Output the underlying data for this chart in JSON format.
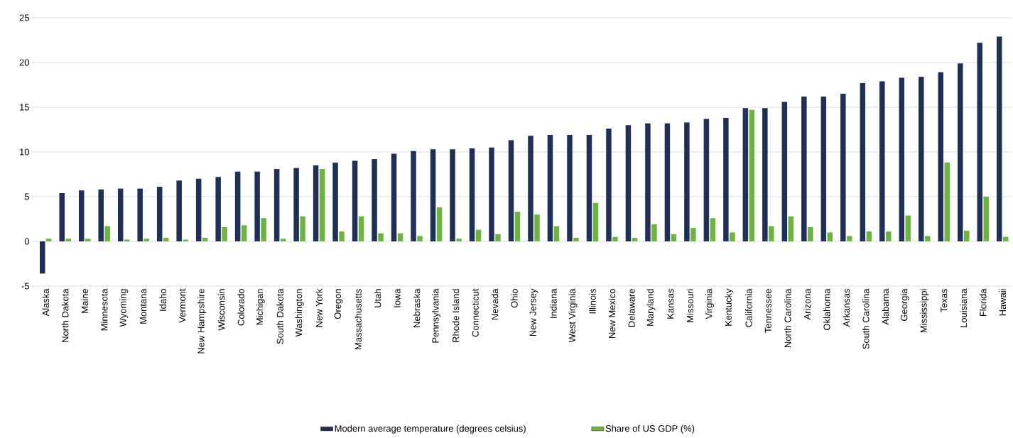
{
  "chart_data": {
    "type": "bar",
    "categories": [
      "Alaska",
      "North Dakota",
      "Maine",
      "Minnesota",
      "Wyoming",
      "Montana",
      "Idaho",
      "Vermont",
      "New Hampshire",
      "Wisconsin",
      "Colorado",
      "Michigan",
      "South Dakota",
      "Washington",
      "New York",
      "Oregon",
      "Massachusetts",
      "Utah",
      "Iowa",
      "Nebraska",
      "Pennsylvania",
      "Rhode Island",
      "Connecticut",
      "Nevada",
      "Ohio",
      "New Jersey",
      "Indiana",
      "West Virginia",
      "Illinois",
      "New Mexico",
      "Delaware",
      "Maryland",
      "Kansas",
      "Missouri",
      "Virginia",
      "Kentucky",
      "California",
      "Tennessee",
      "North Carolina",
      "Arizona",
      "Oklahoma",
      "Arkansas",
      "South Carolina",
      "Alabama",
      "Georgia",
      "Mississippi",
      "Texas",
      "Louisiana",
      "Florida",
      "Hawaii"
    ],
    "series": [
      {
        "name": "Modern average temperature (degrees celsius)",
        "color": "#1f3057",
        "values": [
          -3.6,
          5.4,
          5.7,
          5.8,
          5.9,
          5.9,
          6.1,
          6.8,
          7.0,
          7.2,
          7.8,
          7.8,
          8.1,
          8.2,
          8.5,
          8.8,
          9.0,
          9.2,
          9.8,
          10.1,
          10.3,
          10.3,
          10.4,
          10.5,
          11.3,
          11.8,
          11.9,
          11.9,
          11.9,
          12.6,
          13.0,
          13.2,
          13.2,
          13.3,
          13.7,
          13.8,
          14.9,
          14.9,
          15.6,
          16.2,
          16.2,
          16.5,
          17.7,
          17.9,
          18.3,
          18.4,
          18.9,
          19.9,
          22.2,
          22.9
        ]
      },
      {
        "name": "Share of US GDP (%)",
        "color": "#6db33f",
        "values": [
          0.3,
          0.3,
          0.3,
          1.7,
          0.2,
          0.3,
          0.4,
          0.2,
          0.4,
          1.6,
          1.8,
          2.6,
          0.3,
          2.8,
          8.1,
          1.1,
          2.8,
          0.9,
          0.9,
          0.6,
          3.8,
          0.3,
          1.3,
          0.8,
          3.3,
          3.0,
          1.7,
          0.4,
          4.3,
          0.5,
          0.4,
          1.9,
          0.8,
          1.5,
          2.6,
          1.0,
          14.7,
          1.7,
          2.8,
          1.6,
          1.0,
          0.6,
          1.1,
          1.1,
          2.9,
          0.6,
          8.8,
          1.2,
          5.0,
          0.5
        ]
      }
    ],
    "ylim": [
      -5,
      25
    ],
    "yticks": [
      -5,
      0,
      5,
      10,
      15,
      20,
      25
    ],
    "grid": "y",
    "legend": "bottom"
  }
}
